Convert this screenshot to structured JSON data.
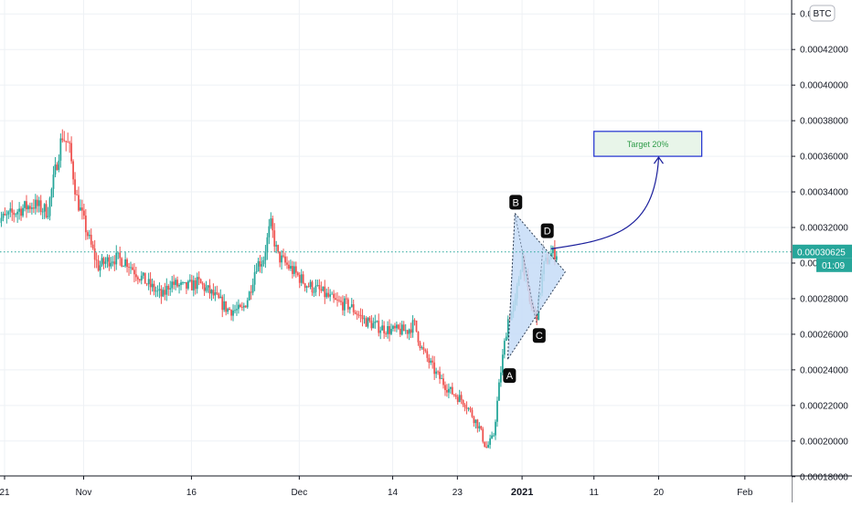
{
  "symbol_badge": "BTC",
  "price_label": "0.00030625",
  "countdown_label": "01:09",
  "target_label": "Target 20%",
  "pattern_points": [
    "A",
    "B",
    "C",
    "D"
  ],
  "colors": {
    "up": "#26a69a",
    "down": "#ef5350",
    "grid": "#eef1f5",
    "axis_text": "#131722",
    "price_line": "#26a69a",
    "pattern_fill": "#c6dcf7",
    "pattern_stroke": "#2f3f57",
    "target_fill": "#e8f5e9",
    "target_border": "#1e2fd0",
    "target_text": "#2e9b48",
    "arrow": "#1b1f9c"
  },
  "chart_data": {
    "type": "candlestick",
    "y_axis": {
      "ylim": [
        0.000175,
        0.000445
      ],
      "ticks": [
        "0.00018000",
        "0.00020000",
        "0.00022000",
        "0.00024000",
        "0.00026000",
        "0.00028000",
        "0.00030000",
        "0.00032000",
        "0.00034000",
        "0.00036000",
        "0.00038000",
        "0.00040000",
        "0.00042000",
        "0.00044000"
      ],
      "partial_tick_labels": [
        "0.000",
        "0.00030"
      ]
    },
    "x_axis": {
      "tick_labels": [
        "21",
        "Nov",
        "16",
        "Dec",
        "14",
        "23",
        "2021",
        "11",
        "20",
        "Feb"
      ],
      "tick_dates": [
        "2020-10-21",
        "2020-11-01",
        "2020-11-16",
        "2020-12-01",
        "2020-12-14",
        "2020-12-23",
        "2021-01-01",
        "2021-01-11",
        "2021-01-20",
        "2021-02-01"
      ],
      "xlim": [
        "2020-10-21",
        "2021-02-07"
      ]
    },
    "series_path": [
      [
        "2020-10-21",
        0.000325
      ],
      [
        "2020-10-23",
        0.00033
      ],
      [
        "2020-10-25",
        0.000333
      ],
      [
        "2020-10-27",
        0.000329
      ],
      [
        "2020-10-29",
        0.000372
      ],
      [
        "2020-10-30",
        0.000365
      ],
      [
        "2020-10-31",
        0.000337
      ],
      [
        "2020-11-02",
        0.00031
      ],
      [
        "2020-11-03",
        0.000298
      ],
      [
        "2020-11-05",
        0.000303
      ],
      [
        "2020-11-07",
        0.000301
      ],
      [
        "2020-11-08",
        0.000296
      ],
      [
        "2020-11-10",
        0.000288
      ],
      [
        "2020-11-12",
        0.000281
      ],
      [
        "2020-11-13",
        0.000289
      ],
      [
        "2020-11-15",
        0.000286
      ],
      [
        "2020-11-17",
        0.000289
      ],
      [
        "2020-11-19",
        0.000282
      ],
      [
        "2020-11-21",
        0.000274
      ],
      [
        "2020-11-23",
        0.000273
      ],
      [
        "2020-11-24",
        0.000282
      ],
      [
        "2020-11-25",
        0.000299
      ],
      [
        "2020-11-26",
        0.000302
      ],
      [
        "2020-11-27",
        0.000322
      ],
      [
        "2020-11-28",
        0.000304
      ],
      [
        "2020-11-30",
        0.000296
      ],
      [
        "2020-12-02",
        0.000288
      ],
      [
        "2020-12-04",
        0.000284
      ],
      [
        "2020-12-06",
        0.000278
      ],
      [
        "2020-12-08",
        0.000276
      ],
      [
        "2020-12-10",
        0.000268
      ],
      [
        "2020-12-12",
        0.000264
      ],
      [
        "2020-12-14",
        0.000262
      ],
      [
        "2020-12-16",
        0.000262
      ],
      [
        "2020-12-17",
        0.000266
      ],
      [
        "2020-12-18",
        0.000252
      ],
      [
        "2020-12-20",
        0.000238
      ],
      [
        "2020-12-22",
        0.000228
      ],
      [
        "2020-12-24",
        0.000222
      ],
      [
        "2020-12-25",
        0.000215
      ],
      [
        "2020-12-26",
        0.000208
      ],
      [
        "2020-12-27",
        0.000196
      ],
      [
        "2020-12-28",
        0.000202
      ],
      [
        "2020-12-29",
        0.000238
      ],
      [
        "2020-12-30",
        0.000268
      ],
      [
        "2020-12-31",
        0.000276
      ],
      [
        "2021-01-01",
        0.000305
      ],
      [
        "2021-01-02",
        0.000278
      ],
      [
        "2021-01-03",
        0.00027
      ],
      [
        "2021-01-04",
        0.000298
      ],
      [
        "2021-01-05",
        0.000305
      ],
      [
        "2021-01-06",
        0.000306
      ]
    ],
    "current_price": 0.00030625,
    "annotations": [
      {
        "type": "label",
        "text": "A",
        "x": "2020-12-30",
        "y": 0.000246
      },
      {
        "type": "label",
        "text": "B",
        "x": "2020-12-31",
        "y": 0.000328
      },
      {
        "type": "label",
        "text": "C",
        "x": "2021-01-03",
        "y": 0.000266
      },
      {
        "type": "label",
        "text": "D",
        "x": "2021-01-04",
        "y": 0.000313
      },
      {
        "type": "triangle_pattern",
        "points": [
          [
            "2020-12-30",
            0.000246
          ],
          [
            "2020-12-31",
            0.000328
          ],
          [
            "2021-01-07",
            0.000295
          ]
        ]
      },
      {
        "type": "target_box",
        "text": "Target 20%",
        "x_range": [
          "2021-01-11",
          "2021-01-26"
        ],
        "y_range": [
          0.00036,
          0.000374
        ]
      },
      {
        "type": "arrow",
        "from": [
          "2021-01-05",
          0.000308
        ],
        "to": [
          "2021-01-20",
          0.00036
        ]
      }
    ]
  }
}
